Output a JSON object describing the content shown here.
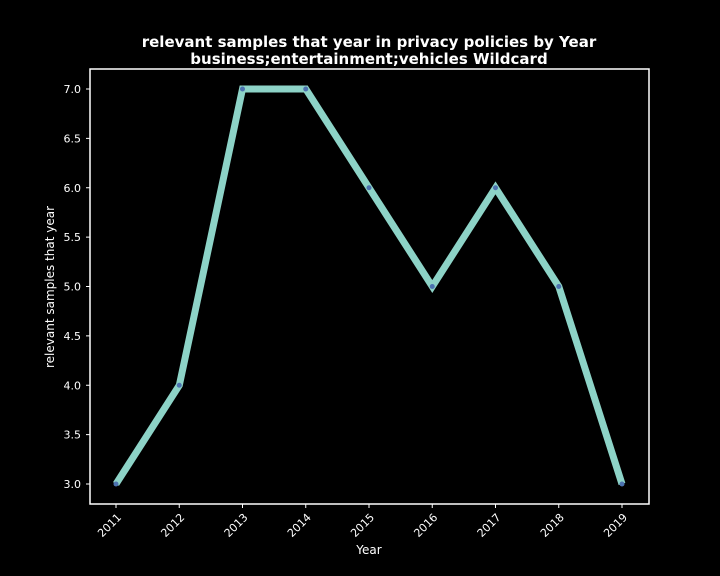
{
  "chart_data": {
    "type": "line",
    "title": "relevant samples that year in privacy policies by Year",
    "subtitle": "business;entertainment;vehicles Wildcard",
    "xlabel": "Year",
    "ylabel": "relevant samples that year",
    "x": [
      "2011",
      "2012",
      "2013",
      "2014",
      "2015",
      "2016",
      "2017",
      "2018",
      "2019"
    ],
    "series": [
      {
        "values": [
          3,
          4,
          7,
          7,
          6,
          5,
          6,
          5,
          3
        ]
      }
    ],
    "ylim": [
      3.0,
      7.0
    ],
    "yticks": [
      "3.0",
      "3.5",
      "4.0",
      "4.5",
      "5.0",
      "5.5",
      "6.0",
      "6.5",
      "7.0"
    ],
    "grid": false,
    "legend": "none",
    "colors": {
      "background": "#000000",
      "line": "#8dd3c7",
      "marker": "#4c72b0",
      "text": "#ffffff",
      "frame": "#ffffff"
    }
  }
}
